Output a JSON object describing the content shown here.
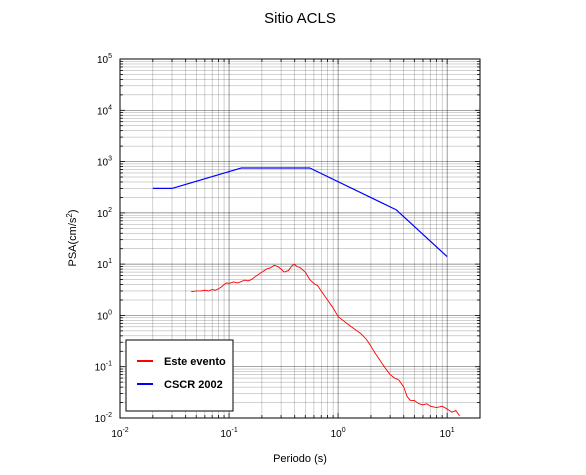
{
  "chart_data": {
    "type": "line",
    "title": "Sitio ACLS",
    "xlabel": "Periodo (s)",
    "ylabel_main": "PSA(cm/s",
    "ylabel_exp": "2",
    "ylabel_close": ")",
    "x_scale": "log",
    "y_scale": "log",
    "xlim": [
      0.01,
      20
    ],
    "ylim": [
      0.01,
      100000
    ],
    "grid": true,
    "legend_position": "bottom-left",
    "x_ticks": [
      {
        "base": "10",
        "exp": "-2",
        "value": 0.01
      },
      {
        "base": "10",
        "exp": "-1",
        "value": 0.1
      },
      {
        "base": "10",
        "exp": "0",
        "value": 1
      },
      {
        "base": "10",
        "exp": "1",
        "value": 10
      }
    ],
    "y_ticks": [
      {
        "base": "10",
        "exp": "-2",
        "value": 0.01
      },
      {
        "base": "10",
        "exp": "-1",
        "value": 0.1
      },
      {
        "base": "10",
        "exp": "0",
        "value": 1
      },
      {
        "base": "10",
        "exp": "1",
        "value": 10
      },
      {
        "base": "10",
        "exp": "2",
        "value": 100
      },
      {
        "base": "10",
        "exp": "3",
        "value": 1000
      },
      {
        "base": "10",
        "exp": "4",
        "value": 10000
      },
      {
        "base": "10",
        "exp": "5",
        "value": 100000
      }
    ],
    "series": [
      {
        "name": "Este evento",
        "color": "#ff0000",
        "points": [
          [
            0.045,
            2.9
          ],
          [
            0.05,
            3.0
          ],
          [
            0.055,
            3.0
          ],
          [
            0.06,
            3.1
          ],
          [
            0.065,
            3.0
          ],
          [
            0.07,
            3.2
          ],
          [
            0.075,
            3.1
          ],
          [
            0.08,
            3.3
          ],
          [
            0.085,
            3.6
          ],
          [
            0.09,
            4.0
          ],
          [
            0.095,
            4.3
          ],
          [
            0.1,
            4.2
          ],
          [
            0.11,
            4.5
          ],
          [
            0.12,
            4.3
          ],
          [
            0.13,
            4.6
          ],
          [
            0.14,
            4.9
          ],
          [
            0.15,
            4.7
          ],
          [
            0.16,
            5.0
          ],
          [
            0.18,
            6.0
          ],
          [
            0.2,
            7.0
          ],
          [
            0.22,
            8.0
          ],
          [
            0.24,
            8.5
          ],
          [
            0.26,
            9.5
          ],
          [
            0.28,
            9.0
          ],
          [
            0.3,
            8.0
          ],
          [
            0.32,
            7.0
          ],
          [
            0.35,
            7.5
          ],
          [
            0.38,
            9.5
          ],
          [
            0.4,
            9.8
          ],
          [
            0.42,
            9.0
          ],
          [
            0.45,
            8.5
          ],
          [
            0.5,
            7.0
          ],
          [
            0.55,
            5.0
          ],
          [
            0.6,
            4.2
          ],
          [
            0.65,
            3.8
          ],
          [
            0.7,
            3.0
          ],
          [
            0.8,
            2.0
          ],
          [
            0.9,
            1.4
          ],
          [
            1.0,
            0.95
          ],
          [
            1.2,
            0.7
          ],
          [
            1.4,
            0.55
          ],
          [
            1.6,
            0.45
          ],
          [
            1.8,
            0.35
          ],
          [
            2.0,
            0.25
          ],
          [
            2.2,
            0.18
          ],
          [
            2.5,
            0.12
          ],
          [
            2.8,
            0.085
          ],
          [
            3.0,
            0.07
          ],
          [
            3.3,
            0.06
          ],
          [
            3.6,
            0.055
          ],
          [
            4.0,
            0.04
          ],
          [
            4.3,
            0.026
          ],
          [
            4.6,
            0.022
          ],
          [
            5.0,
            0.022
          ],
          [
            5.5,
            0.019
          ],
          [
            6.0,
            0.018
          ],
          [
            6.5,
            0.019
          ],
          [
            7.0,
            0.017
          ],
          [
            8.0,
            0.016
          ],
          [
            9.0,
            0.017
          ],
          [
            10.0,
            0.015
          ],
          [
            11.0,
            0.013
          ],
          [
            12.0,
            0.014
          ],
          [
            13.0,
            0.011
          ]
        ]
      },
      {
        "name": "CSCR 2002",
        "color": "#0000ff",
        "points": [
          [
            0.02,
            300
          ],
          [
            0.03,
            300
          ],
          [
            0.13,
            750
          ],
          [
            0.55,
            750
          ],
          [
            3.4,
            115
          ],
          [
            10.0,
            14
          ]
        ]
      }
    ]
  }
}
